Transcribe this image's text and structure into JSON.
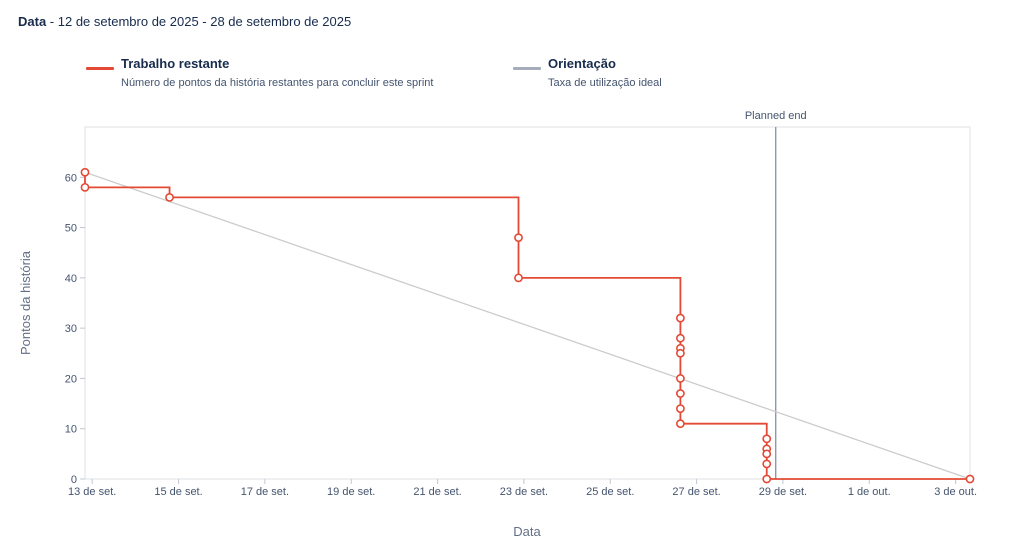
{
  "header": {
    "label": "Data",
    "separator": " - ",
    "range": "12 de setembro de 2025 - 28 de setembro de 2025"
  },
  "legend": [
    {
      "title": "Trabalho restante",
      "desc": "Número de pontos da história restantes para concluir este sprint",
      "color": "#e34935"
    },
    {
      "title": "Orientação",
      "desc": "Taxa de utilização ideal",
      "color": "#a5adba"
    }
  ],
  "chart_data": {
    "type": "line",
    "xlabel": "Data",
    "ylabel": "Pontos da história",
    "x_ticks": [
      "13 de set.",
      "15 de set.",
      "17 de set.",
      "19 de set.",
      "21 de set.",
      "23 de set.",
      "25 de set.",
      "27 de set.",
      "29 de set.",
      "1 de out.",
      "3 de out."
    ],
    "y_ticks": [
      0,
      10,
      20,
      30,
      40,
      50,
      60
    ],
    "xlim": [
      "2025-09-12T20:00",
      "2025-10-03T08:00"
    ],
    "ylim": [
      0,
      70
    ],
    "grid": false,
    "planned_end": {
      "label": "Planned end",
      "x": "2025-09-28T20:00"
    },
    "series": [
      {
        "name": "Trabalho restante",
        "color": "#e34935",
        "step": true,
        "points": [
          {
            "x": "2025-09-12T20:00",
            "y": 61
          },
          {
            "x": "2025-09-12T20:00",
            "y": 58
          },
          {
            "x": "2025-09-14T19:00",
            "y": 56
          },
          {
            "x": "2025-09-22T21:00",
            "y": 48
          },
          {
            "x": "2025-09-22T21:00",
            "y": 40
          },
          {
            "x": "2025-09-26T15:00",
            "y": 32
          },
          {
            "x": "2025-09-26T15:00",
            "y": 28
          },
          {
            "x": "2025-09-26T15:00",
            "y": 26
          },
          {
            "x": "2025-09-26T15:00",
            "y": 25
          },
          {
            "x": "2025-09-26T15:00",
            "y": 20
          },
          {
            "x": "2025-09-26T15:00",
            "y": 17
          },
          {
            "x": "2025-09-26T15:00",
            "y": 14
          },
          {
            "x": "2025-09-26T15:00",
            "y": 11
          },
          {
            "x": "2025-09-28T15:00",
            "y": 8
          },
          {
            "x": "2025-09-28T15:00",
            "y": 6
          },
          {
            "x": "2025-09-28T15:00",
            "y": 5
          },
          {
            "x": "2025-09-28T15:00",
            "y": 3
          },
          {
            "x": "2025-09-28T15:00",
            "y": 0
          },
          {
            "x": "2025-10-03T08:00",
            "y": 0
          }
        ]
      },
      {
        "name": "Orientação",
        "color": "#cccccc",
        "step": false,
        "points": [
          {
            "x": "2025-09-12T20:00",
            "y": 61
          },
          {
            "x": "2025-10-03T08:00",
            "y": 0
          }
        ]
      }
    ]
  }
}
